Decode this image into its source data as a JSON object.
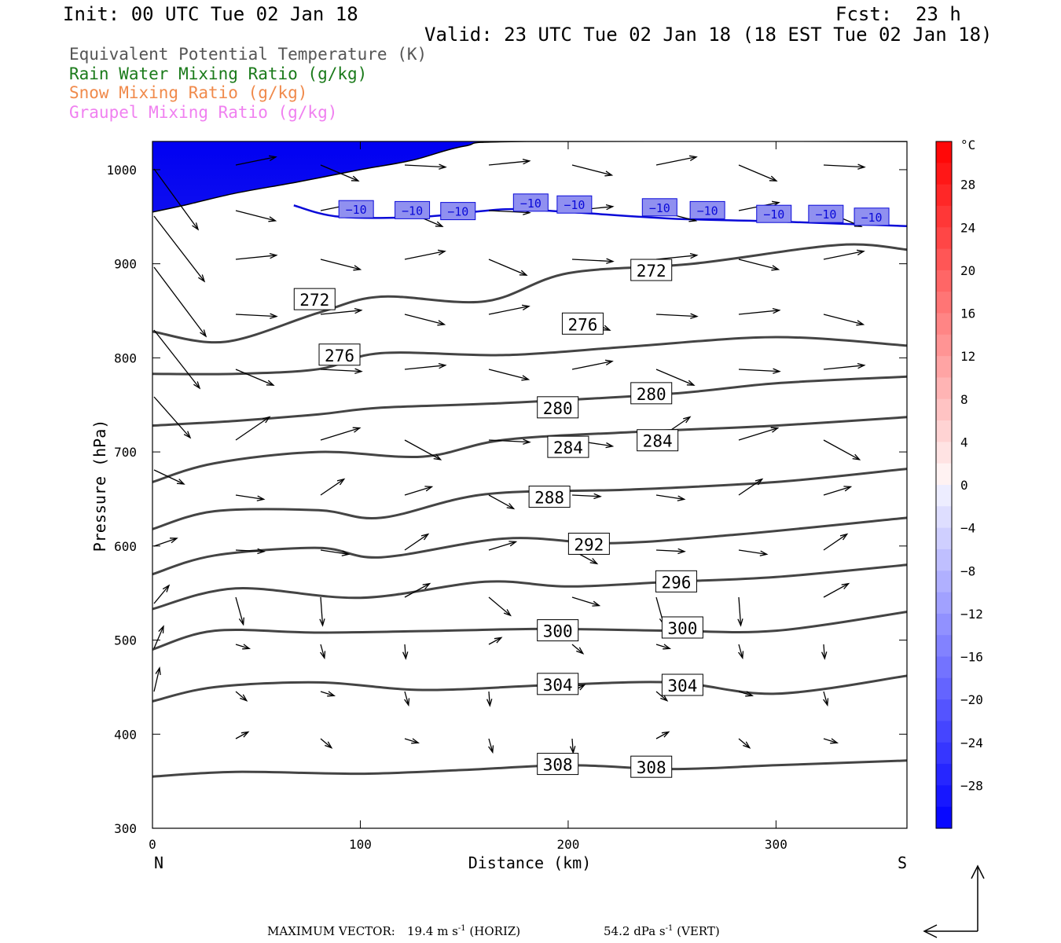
{
  "header": {
    "init": "Init: 00 UTC Tue 02 Jan 18",
    "fcst_label": "Fcst:",
    "fcst_value": "23 h",
    "valid": "Valid: 23 UTC Tue 02 Jan 18 (18 EST Tue 02 Jan 18)"
  },
  "legend": [
    {
      "label": "Equivalent Potential Temperature (K)",
      "color": "#555555"
    },
    {
      "label": "Rain Water Mixing Ratio (g/kg)",
      "color": "#1a7a1a"
    },
    {
      "label": "Snow Mixing Ratio (g/kg)",
      "color": "#f08a4b"
    },
    {
      "label": "Graupel Mixing Ratio (g/kg)",
      "color": "#f080f0"
    }
  ],
  "chart_data": {
    "type": "cross-section",
    "xlabel": "Distance (km)",
    "ylabel": "Pressure (hPa)",
    "xlim": [
      0,
      363
    ],
    "ylim": [
      1030,
      300
    ],
    "xticks": [
      0,
      100,
      200,
      300
    ],
    "yticks": [
      300,
      400,
      500,
      600,
      700,
      800,
      900,
      1000
    ],
    "x_end_labels": {
      "left": "N",
      "right": "S"
    },
    "colorbar": {
      "unit": "°C",
      "ticks": [
        28,
        24,
        20,
        16,
        12,
        8,
        4,
        0,
        -4,
        -8,
        -12,
        -16,
        -20,
        -24,
        -28
      ],
      "levels": [
        32,
        30,
        28,
        26,
        24,
        22,
        20,
        18,
        16,
        14,
        12,
        10,
        8,
        6,
        4,
        2,
        0,
        -2,
        -4,
        -6,
        -8,
        -10,
        -12,
        -14,
        -16,
        -18,
        -20,
        -22,
        -24,
        -26,
        -28,
        -30,
        -32
      ]
    },
    "theta_e_contours": [
      {
        "value": 308,
        "points": [
          [
            0,
            355
          ],
          [
            40,
            360
          ],
          [
            100,
            358
          ],
          [
            150,
            362
          ],
          [
            200,
            367
          ],
          [
            250,
            363
          ],
          [
            300,
            367
          ],
          [
            363,
            372
          ]
        ],
        "labels": [
          [
            195,
            368
          ],
          [
            240,
            365
          ]
        ]
      },
      {
        "value": 304,
        "points": [
          [
            0,
            435
          ],
          [
            30,
            450
          ],
          [
            80,
            455
          ],
          [
            130,
            447
          ],
          [
            190,
            452
          ],
          [
            250,
            455
          ],
          [
            300,
            443
          ],
          [
            363,
            462
          ]
        ],
        "labels": [
          [
            195,
            453
          ],
          [
            255,
            452
          ]
        ]
      },
      {
        "value": 300,
        "points": [
          [
            0,
            490
          ],
          [
            30,
            510
          ],
          [
            80,
            508
          ],
          [
            140,
            510
          ],
          [
            190,
            512
          ],
          [
            250,
            510
          ],
          [
            300,
            510
          ],
          [
            363,
            530
          ]
        ],
        "labels": [
          [
            195,
            510
          ],
          [
            255,
            513
          ]
        ]
      },
      {
        "value": 296,
        "points": [
          [
            0,
            533
          ],
          [
            40,
            555
          ],
          [
            100,
            545
          ],
          [
            160,
            562
          ],
          [
            200,
            557
          ],
          [
            250,
            562
          ],
          [
            300,
            567
          ],
          [
            363,
            580
          ]
        ],
        "labels": [
          [
            252,
            562
          ]
        ]
      },
      {
        "value": 292,
        "points": [
          [
            0,
            570
          ],
          [
            30,
            590
          ],
          [
            80,
            598
          ],
          [
            110,
            588
          ],
          [
            170,
            608
          ],
          [
            220,
            603
          ],
          [
            280,
            612
          ],
          [
            363,
            630
          ]
        ],
        "labels": [
          [
            210,
            602
          ]
        ]
      },
      {
        "value": 288,
        "points": [
          [
            0,
            618
          ],
          [
            30,
            637
          ],
          [
            80,
            638
          ],
          [
            110,
            630
          ],
          [
            160,
            655
          ],
          [
            230,
            660
          ],
          [
            300,
            668
          ],
          [
            363,
            682
          ]
        ],
        "labels": [
          [
            191,
            652
          ]
        ]
      },
      {
        "value": 284,
        "points": [
          [
            0,
            668
          ],
          [
            30,
            688
          ],
          [
            80,
            700
          ],
          [
            130,
            695
          ],
          [
            170,
            713
          ],
          [
            240,
            722
          ],
          [
            300,
            728
          ],
          [
            363,
            737
          ]
        ],
        "labels": [
          [
            200,
            705
          ],
          [
            243,
            712
          ]
        ]
      },
      {
        "value": 280,
        "points": [
          [
            0,
            728
          ],
          [
            40,
            733
          ],
          [
            80,
            740
          ],
          [
            110,
            747
          ],
          [
            170,
            752
          ],
          [
            250,
            762
          ],
          [
            300,
            773
          ],
          [
            363,
            780
          ]
        ],
        "labels": [
          [
            195,
            747
          ],
          [
            240,
            762
          ]
        ]
      },
      {
        "value": 276,
        "points": [
          [
            0,
            783
          ],
          [
            40,
            783
          ],
          [
            80,
            788
          ],
          [
            110,
            805
          ],
          [
            170,
            803
          ],
          [
            230,
            812
          ],
          [
            300,
            822
          ],
          [
            363,
            813
          ]
        ],
        "labels": [
          [
            90,
            803
          ],
          [
            207,
            836
          ]
        ]
      },
      {
        "value": 272,
        "points": [
          [
            0,
            828
          ],
          [
            35,
            817
          ],
          [
            80,
            848
          ],
          [
            110,
            865
          ],
          [
            160,
            860
          ],
          [
            200,
            890
          ],
          [
            260,
            900
          ],
          [
            330,
            920
          ],
          [
            363,
            915
          ]
        ],
        "labels": [
          [
            78,
            862
          ],
          [
            240,
            893
          ]
        ]
      }
    ],
    "isotherm_minus10": {
      "value": -10,
      "points": [
        [
          68,
          962
        ],
        [
          90,
          950
        ],
        [
          130,
          950
        ],
        [
          170,
          958
        ],
        [
          200,
          955
        ],
        [
          250,
          948
        ],
        [
          300,
          945
        ],
        [
          363,
          940
        ]
      ],
      "labels": [
        [
          98,
          958
        ],
        [
          125,
          957
        ],
        [
          147,
          956
        ],
        [
          182,
          965
        ],
        [
          203,
          963
        ],
        [
          244,
          960
        ],
        [
          267,
          957
        ],
        [
          299,
          953
        ],
        [
          324,
          953
        ],
        [
          346,
          950
        ]
      ]
    },
    "terrain_pressure": [
      [
        0,
        955
      ],
      [
        15,
        962
      ],
      [
        40,
        975
      ],
      [
        70,
        987
      ],
      [
        100,
        1000
      ],
      [
        125,
        1010
      ],
      [
        150,
        1025
      ],
      [
        180,
        1030
      ],
      [
        363,
        1030
      ]
    ],
    "max_vector": {
      "label": "MAXIMUM VECTOR:",
      "horiz_value": "19.4",
      "horiz_unit": "m s",
      "horiz_exp": "-1",
      "horiz_tag": "(HORIZ)",
      "vert_value": "54.2",
      "vert_unit": "dPa s",
      "vert_exp": "-1",
      "vert_tag": "(VERT)"
    }
  }
}
